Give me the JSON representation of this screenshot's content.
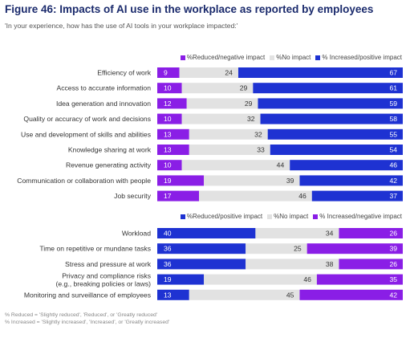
{
  "title": "Figure 46: Impacts of AI use in the workplace as reported by employees",
  "subtitle": "'In your experience, how has the use of AI tools in your workplace impacted:'",
  "colors": {
    "purple": "#8a1ee6",
    "gray": "#e2e2e2",
    "blue": "#1e32d2"
  },
  "chart_data": [
    {
      "type": "bar",
      "orientation": "horizontal",
      "stacked": true,
      "xlim": [
        0,
        100
      ],
      "legend": [
        "%Reduced/negative impact",
        "%No impact",
        "% Increased/positive impact"
      ],
      "categories": [
        "Efficiency of work",
        "Access to accurate information",
        "Idea generation and innovation",
        "Quality or accuracy of work and decisions",
        "Use and development of skills and abilities",
        "Knowledge sharing at work",
        "Revenue generating activity",
        "Communication or collaboration with people",
        "Job security"
      ],
      "series": [
        {
          "name": "%Reduced/negative impact",
          "color": "#8a1ee6",
          "values": [
            9,
            10,
            12,
            10,
            13,
            13,
            10,
            19,
            17
          ]
        },
        {
          "name": "%No impact",
          "color": "#e2e2e2",
          "values": [
            24,
            29,
            29,
            32,
            32,
            33,
            44,
            39,
            46
          ]
        },
        {
          "name": "% Increased/positive impact",
          "color": "#1e32d2",
          "values": [
            67,
            61,
            59,
            58,
            55,
            54,
            46,
            42,
            37
          ]
        }
      ]
    },
    {
      "type": "bar",
      "orientation": "horizontal",
      "stacked": true,
      "xlim": [
        0,
        100
      ],
      "legend": [
        "%Reduced/positive impact",
        "%No impact",
        "% Increased/negative impact"
      ],
      "categories": [
        "Workload",
        "Time on repetitive or mundane tasks",
        "Stress and pressure at work",
        "Privacy and compliance risks\n(e.g., breaking policies or laws)",
        "Monitoring and surveillance of employees"
      ],
      "series": [
        {
          "name": "%Reduced/positive impact",
          "color": "#1e32d2",
          "values": [
            40,
            36,
            36,
            19,
            13
          ]
        },
        {
          "name": "%No impact",
          "color": "#e2e2e2",
          "values": [
            34,
            25,
            38,
            46,
            45
          ]
        },
        {
          "name": "% Increased/negative impact",
          "color": "#8a1ee6",
          "values": [
            26,
            39,
            26,
            35,
            42
          ]
        }
      ]
    }
  ],
  "footnotes": [
    "% Reduced = 'Slightly reduced', 'Reduced', or 'Greatly reduced'",
    "% Increased = 'Slightly increased', 'Increased', or 'Greatly increased'"
  ]
}
